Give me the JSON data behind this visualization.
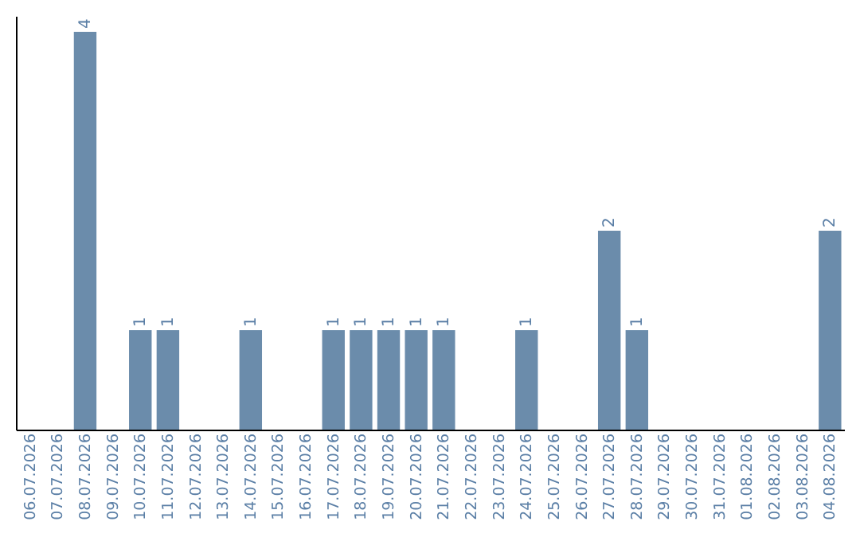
{
  "chart_data": {
    "type": "bar",
    "categories": [
      "06.07.2026",
      "07.07.2026",
      "08.07.2026",
      "09.07.2026",
      "10.07.2026",
      "11.07.2026",
      "12.07.2026",
      "13.07.2026",
      "14.07.2026",
      "15.07.2026",
      "16.07.2026",
      "17.07.2026",
      "18.07.2026",
      "19.07.2026",
      "20.07.2026",
      "21.07.2026",
      "22.07.2026",
      "23.07.2026",
      "24.07.2026",
      "25.07.2026",
      "26.07.2026",
      "27.07.2026",
      "28.07.2026",
      "29.07.2026",
      "30.07.2026",
      "31.07.2026",
      "01.08.2026",
      "02.08.2026",
      "03.08.2026",
      "04.08.2026"
    ],
    "values": [
      null,
      null,
      4,
      null,
      1,
      1,
      null,
      null,
      1,
      null,
      null,
      1,
      1,
      1,
      1,
      1,
      null,
      null,
      1,
      null,
      null,
      2,
      1,
      null,
      null,
      null,
      null,
      null,
      null,
      2
    ],
    "color": "#6b8cab",
    "ylim": [
      0,
      4.16
    ],
    "data_labels": true,
    "tick_labels": "x",
    "grid": false
  }
}
